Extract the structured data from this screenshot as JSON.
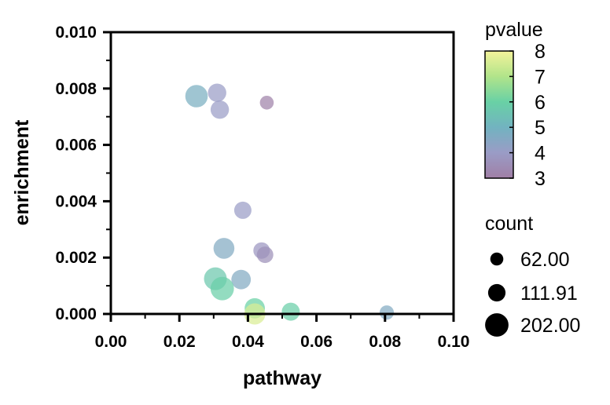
{
  "chart_data": {
    "type": "scatter",
    "title": "",
    "xlabel": "pathway",
    "ylabel": "enrichment",
    "xlim": [
      0,
      0.1
    ],
    "ylim": [
      0,
      0.01
    ],
    "xticks": [
      {
        "value": 0,
        "label": "0.00"
      },
      {
        "value": 0.02,
        "label": "0.02"
      },
      {
        "value": 0.04,
        "label": "0.04"
      },
      {
        "value": 0.06,
        "label": "0.06"
      },
      {
        "value": 0.08,
        "label": "0.08"
      },
      {
        "value": 0.1,
        "label": "0.10"
      }
    ],
    "yticks": [
      {
        "value": 0,
        "label": "0.000"
      },
      {
        "value": 0.002,
        "label": "0.002"
      },
      {
        "value": 0.004,
        "label": "0.004"
      },
      {
        "value": 0.006,
        "label": "0.006"
      },
      {
        "value": 0.008,
        "label": "0.008"
      },
      {
        "value": 0.01,
        "label": "0.010"
      }
    ],
    "grid": false,
    "points": [
      {
        "x": 0.025,
        "y": 0.00773,
        "count": 185,
        "pvalue": 4.8
      },
      {
        "x": 0.031,
        "y": 0.00785,
        "count": 125,
        "pvalue": 4.0
      },
      {
        "x": 0.0318,
        "y": 0.00725,
        "count": 125,
        "pvalue": 4.0
      },
      {
        "x": 0.0455,
        "y": 0.0075,
        "count": 70,
        "pvalue": 3.1
      },
      {
        "x": 0.0385,
        "y": 0.00368,
        "count": 110,
        "pvalue": 4.0
      },
      {
        "x": 0.033,
        "y": 0.00233,
        "count": 160,
        "pvalue": 4.6
      },
      {
        "x": 0.044,
        "y": 0.00225,
        "count": 100,
        "pvalue": 3.8
      },
      {
        "x": 0.045,
        "y": 0.0021,
        "count": 100,
        "pvalue": 3.6
      },
      {
        "x": 0.0305,
        "y": 0.00125,
        "count": 190,
        "pvalue": 5.7
      },
      {
        "x": 0.038,
        "y": 0.00122,
        "count": 140,
        "pvalue": 4.6
      },
      {
        "x": 0.0325,
        "y": 0.0009,
        "count": 202,
        "pvalue": 5.9
      },
      {
        "x": 0.042,
        "y": 0.0002,
        "count": 150,
        "pvalue": 6.0
      },
      {
        "x": 0.0525,
        "y": 8e-05,
        "count": 120,
        "pvalue": 5.9
      },
      {
        "x": 0.042,
        "y": 0.0,
        "count": 165,
        "pvalue": 7.6
      },
      {
        "x": 0.0805,
        "y": 5e-05,
        "count": 75,
        "pvalue": 4.6
      }
    ],
    "color_legend": {
      "title": "pvalue",
      "min": 3,
      "max": 8,
      "ticks": [
        "3",
        "4",
        "5",
        "6",
        "7",
        "8"
      ],
      "colors": [
        "#a07fa6",
        "#9a9cc6",
        "#72b3c0",
        "#69d1a5",
        "#b1e48a",
        "#f4f39b"
      ]
    },
    "size_legend": {
      "title": "count",
      "entries": [
        {
          "label": "62.00",
          "value": 62
        },
        {
          "label": "111.91",
          "value": 111.91
        },
        {
          "label": "202.00",
          "value": 202
        }
      ]
    }
  }
}
